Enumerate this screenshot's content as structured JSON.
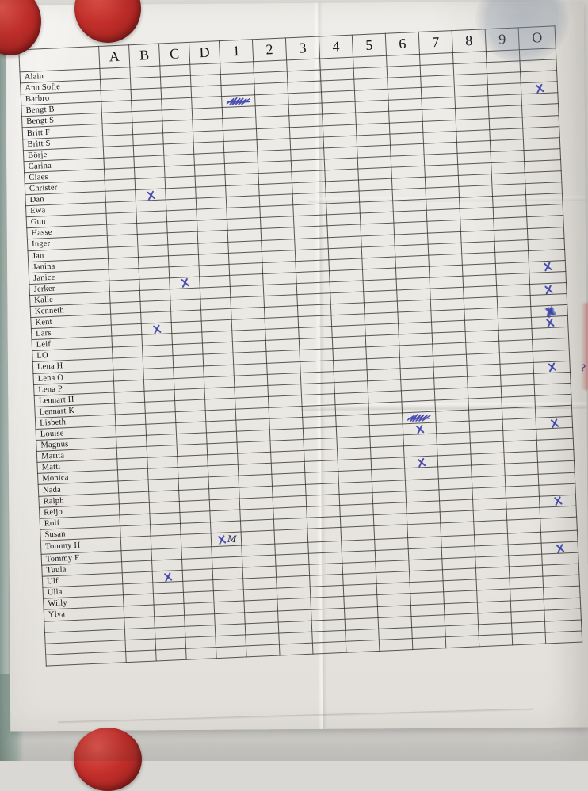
{
  "sheet": {
    "columns": [
      "A",
      "B",
      "C",
      "D",
      "1",
      "2",
      "3",
      "4",
      "5",
      "6",
      "7",
      "8",
      "9",
      "O"
    ],
    "names": [
      "Alain",
      "Ann Sofie",
      "Barbro",
      "Bengt B",
      "Bengt S",
      "Britt F",
      "Britt S",
      "Börje",
      "Carina",
      "Claes",
      "Christer",
      "Dan",
      "Ewa",
      "Gun",
      "Hasse",
      "Inger",
      "Jan",
      "Janina",
      "Janice",
      "Jerker",
      "Kalle",
      "Kenneth",
      "Kent",
      "Lars",
      "Leif",
      "LO",
      "Lena H",
      "Lena O",
      "Lena P",
      "Lennart H",
      "Lennart K",
      "Lisbeth",
      "Louise",
      "Magnus",
      "Marita",
      "Matti",
      "Monica",
      "Nada",
      "Ralph",
      "Reijo",
      "Rolf",
      "Susan",
      "Tommy H",
      "Tommy F",
      "Tuula",
      "Ulf",
      "Ulla",
      "Willy",
      "Ylva"
    ],
    "empty_rows_bottom": 4,
    "marks": [
      {
        "row": "Bengt B",
        "col": "1",
        "type": "scribble"
      },
      {
        "row": "Bengt B",
        "col": "O",
        "type": "x"
      },
      {
        "row": "Dan",
        "col": "B",
        "type": "x"
      },
      {
        "row": "Jerker",
        "col": "C",
        "type": "x"
      },
      {
        "row": "Jerker",
        "col": "O",
        "type": "x"
      },
      {
        "row": "Kenneth",
        "col": "O",
        "type": "x"
      },
      {
        "row": "Lars",
        "col": "B",
        "type": "x"
      },
      {
        "row": "Lars",
        "col": "O",
        "type": "x-bold"
      },
      {
        "row": "Leif",
        "col": "O",
        "type": "x"
      },
      {
        "row": "Lena P",
        "col": "O",
        "type": "x"
      },
      {
        "row": "Lena P",
        "col": "margin",
        "type": "note",
        "text": "?"
      },
      {
        "row": "Louise",
        "col": "6",
        "type": "scribble"
      },
      {
        "row": "Magnus",
        "col": "6",
        "type": "x"
      },
      {
        "row": "Magnus",
        "col": "O",
        "type": "x"
      },
      {
        "row": "Monica",
        "col": "6",
        "type": "x"
      },
      {
        "row": "Rolf",
        "col": "O",
        "type": "x"
      },
      {
        "row": "Tommy H",
        "col": "D",
        "type": "x-note",
        "text": "M"
      },
      {
        "row": "Tuula",
        "col": "O",
        "type": "x"
      },
      {
        "row": "Ulf",
        "col": "B",
        "type": "x"
      }
    ]
  },
  "colors": {
    "ink": "#3d42ad",
    "paper": "#eae8e3",
    "magnet_red": "#c22f2b",
    "board": "#d9d8d4",
    "grid_line": "#2d2a28"
  }
}
